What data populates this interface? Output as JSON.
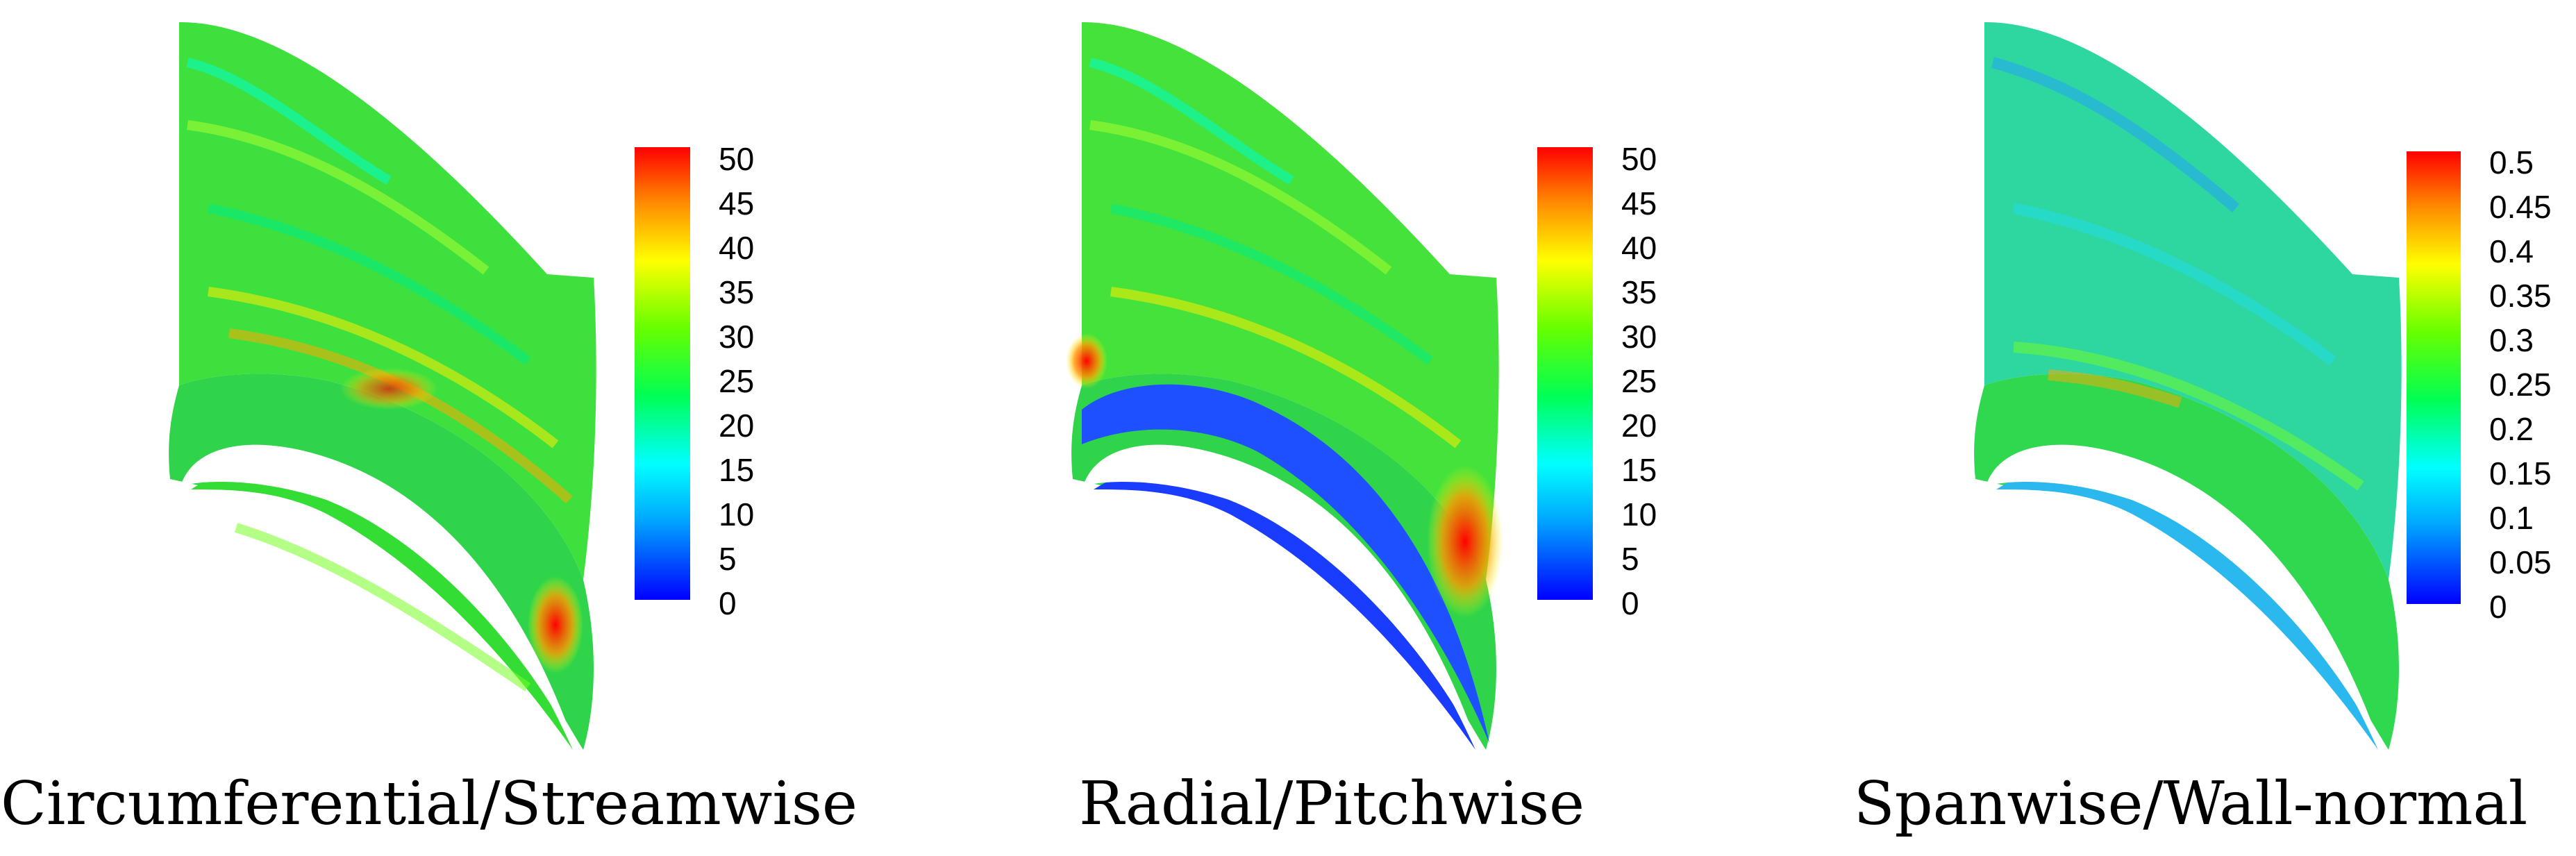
{
  "panels": [
    {
      "caption": "Circumferential/Streamwise",
      "colorbar_ticks": [
        "50",
        "45",
        "40",
        "35",
        "30",
        "25",
        "20",
        "15",
        "10",
        "5",
        "0"
      ]
    },
    {
      "caption": "Radial/Pitchwise",
      "colorbar_ticks": [
        "50",
        "45",
        "40",
        "35",
        "30",
        "25",
        "20",
        "15",
        "10",
        "5",
        "0"
      ]
    },
    {
      "caption": "Spanwise/Wall-normal",
      "colorbar_ticks": [
        "0.5",
        "0.45",
        "0.4",
        "0.35",
        "0.3",
        "0.25",
        "0.2",
        "0.15",
        "0.1",
        "0.05",
        "0"
      ]
    }
  ],
  "colormap": [
    "#0000ff",
    "#00aaff",
    "#00ffff",
    "#00ff66",
    "#22ff00",
    "#99ff00",
    "#ffff00",
    "#ffaa00",
    "#ff5500",
    "#ff0000"
  ]
}
